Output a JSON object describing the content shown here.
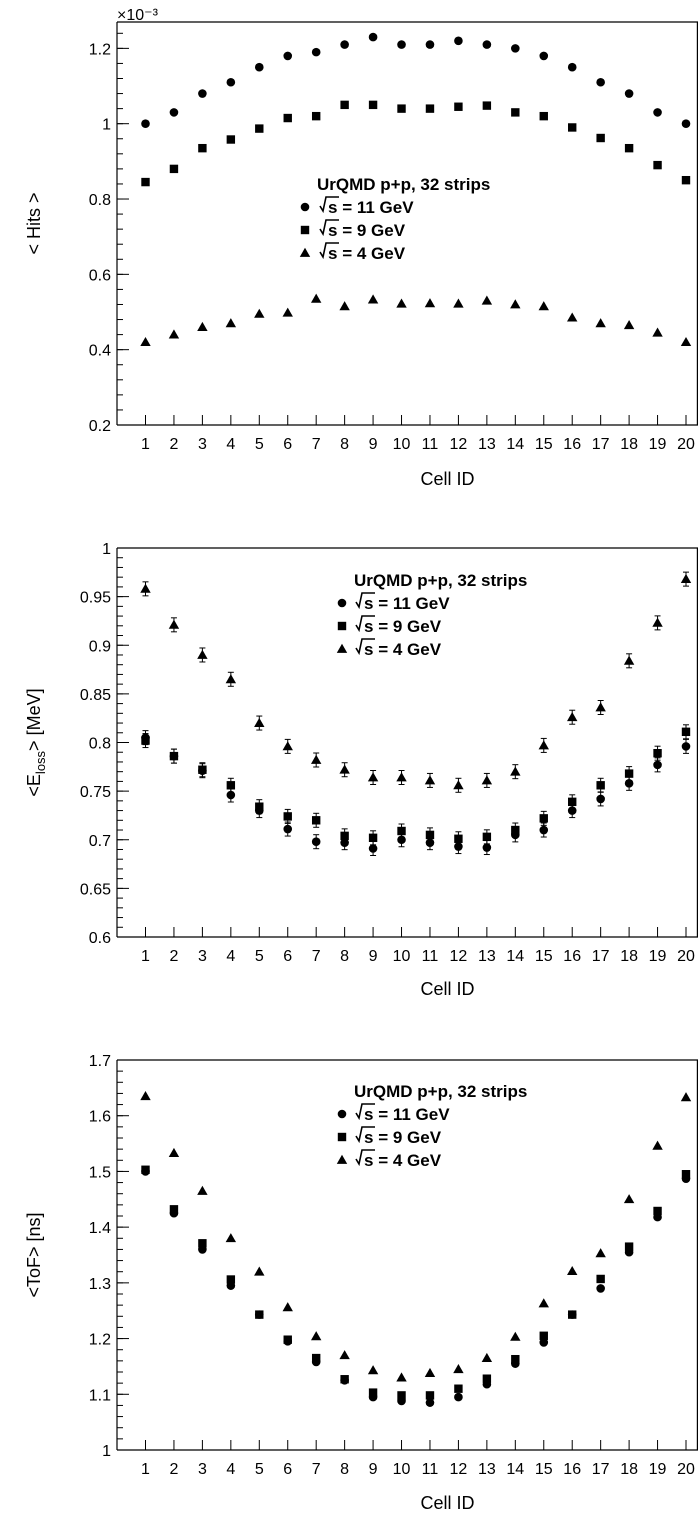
{
  "chart_data": [
    {
      "type": "scatter",
      "xlabel": "Cell ID",
      "ylabel": "< Hits >",
      "exponent": "×10⁻³",
      "ylim": [
        0.2,
        1.27
      ],
      "yticks": [
        "0.2",
        "0.4",
        "0.6",
        "0.8",
        "1",
        "1.2"
      ],
      "categories": [
        "1",
        "2",
        "3",
        "4",
        "5",
        "6",
        "7",
        "8",
        "9",
        "10",
        "11",
        "12",
        "13",
        "14",
        "15",
        "16",
        "17",
        "18",
        "19",
        "20"
      ],
      "legend": {
        "title": "UrQMD p+p, 32 strips",
        "placement": "center",
        "entries": [
          {
            "marker": "circle",
            "root": "s",
            "label": " = 11 GeV"
          },
          {
            "marker": "square",
            "root": "s",
            "label": " = 9 GeV"
          },
          {
            "marker": "triangle",
            "root": "s",
            "label": " = 4 GeV"
          }
        ]
      },
      "series": [
        {
          "marker": "circle",
          "values": [
            1.0,
            1.03,
            1.08,
            1.11,
            1.15,
            1.18,
            1.19,
            1.21,
            1.23,
            1.21,
            1.21,
            1.22,
            1.21,
            1.2,
            1.18,
            1.15,
            1.11,
            1.08,
            1.03,
            1.0
          ]
        },
        {
          "marker": "square",
          "values": [
            0.845,
            0.88,
            0.935,
            0.958,
            0.987,
            1.015,
            1.02,
            1.05,
            1.05,
            1.04,
            1.04,
            1.045,
            1.048,
            1.03,
            1.02,
            0.99,
            0.962,
            0.935,
            0.89,
            0.85
          ]
        },
        {
          "marker": "triangle",
          "values": [
            0.42,
            0.44,
            0.46,
            0.47,
            0.495,
            0.498,
            0.535,
            0.515,
            0.533,
            0.522,
            0.523,
            0.522,
            0.53,
            0.52,
            0.515,
            0.485,
            0.47,
            0.465,
            0.445,
            0.42
          ]
        }
      ],
      "error_bars": false
    },
    {
      "type": "scatter",
      "xlabel": "Cell ID",
      "ylabel": "<E",
      "ylabel_sub": "loss",
      "ylabel_tail": "> [MeV]",
      "ylim": [
        0.6,
        1.0
      ],
      "yticks": [
        "0.6",
        "0.65",
        "0.7",
        "0.75",
        "0.8",
        "0.85",
        "0.9",
        "0.95",
        "1"
      ],
      "categories": [
        "1",
        "2",
        "3",
        "4",
        "5",
        "6",
        "7",
        "8",
        "9",
        "10",
        "11",
        "12",
        "13",
        "14",
        "15",
        "16",
        "17",
        "18",
        "19",
        "20"
      ],
      "legend": {
        "title": "UrQMD p+p, 32 strips",
        "placement": "top-right",
        "entries": [
          {
            "marker": "circle",
            "root": "s",
            "label": " = 11 GeV"
          },
          {
            "marker": "square",
            "root": "s",
            "label": " = 9 GeV"
          },
          {
            "marker": "triangle",
            "root": "s",
            "label": " = 4 GeV"
          }
        ]
      },
      "series": [
        {
          "marker": "circle",
          "values": [
            0.805,
            0.786,
            0.771,
            0.746,
            0.73,
            0.711,
            0.698,
            0.697,
            0.691,
            0.7,
            0.697,
            0.693,
            0.692,
            0.705,
            0.71,
            0.73,
            0.742,
            0.758,
            0.777,
            0.796
          ]
        },
        {
          "marker": "square",
          "values": [
            0.802,
            0.786,
            0.772,
            0.756,
            0.734,
            0.724,
            0.72,
            0.704,
            0.702,
            0.709,
            0.705,
            0.701,
            0.703,
            0.71,
            0.722,
            0.739,
            0.756,
            0.768,
            0.789,
            0.811
          ]
        },
        {
          "marker": "triangle",
          "values": [
            0.958,
            0.921,
            0.89,
            0.865,
            0.82,
            0.796,
            0.782,
            0.772,
            0.764,
            0.764,
            0.761,
            0.756,
            0.761,
            0.77,
            0.797,
            0.826,
            0.836,
            0.884,
            0.923,
            0.968
          ]
        }
      ],
      "error_bars": true
    },
    {
      "type": "scatter",
      "xlabel": "Cell ID",
      "ylabel": "<ToF> [ns]",
      "ylim": [
        1.0,
        1.7
      ],
      "yticks": [
        "1",
        "1.1",
        "1.2",
        "1.3",
        "1.4",
        "1.5",
        "1.6",
        "1.7"
      ],
      "categories": [
        "1",
        "2",
        "3",
        "4",
        "5",
        "6",
        "7",
        "8",
        "9",
        "10",
        "11",
        "12",
        "13",
        "14",
        "15",
        "16",
        "17",
        "18",
        "19",
        "20"
      ],
      "legend": {
        "title": "UrQMD p+p, 32 strips",
        "placement": "top-right",
        "entries": [
          {
            "marker": "circle",
            "root": "s",
            "label": " = 11 GeV"
          },
          {
            "marker": "square",
            "root": "s",
            "label": " = 9 GeV"
          },
          {
            "marker": "triangle",
            "root": "s",
            "label": " = 4 GeV"
          }
        ]
      },
      "series": [
        {
          "marker": "circle",
          "values": [
            1.5,
            1.425,
            1.36,
            1.295,
            1.243,
            1.195,
            1.158,
            1.125,
            1.095,
            1.088,
            1.085,
            1.095,
            1.118,
            1.155,
            1.193,
            1.243,
            1.29,
            1.355,
            1.418,
            1.487
          ]
        },
        {
          "marker": "square",
          "values": [
            1.503,
            1.432,
            1.371,
            1.306,
            1.243,
            1.198,
            1.165,
            1.127,
            1.103,
            1.098,
            1.098,
            1.11,
            1.128,
            1.163,
            1.205,
            1.243,
            1.307,
            1.365,
            1.429,
            1.495
          ]
        },
        {
          "marker": "triangle",
          "values": [
            1.635,
            1.533,
            1.465,
            1.38,
            1.32,
            1.256,
            1.204,
            1.17,
            1.143,
            1.13,
            1.138,
            1.145,
            1.165,
            1.203,
            1.263,
            1.321,
            1.353,
            1.45,
            1.546,
            1.633
          ]
        }
      ],
      "error_bars": false
    }
  ]
}
